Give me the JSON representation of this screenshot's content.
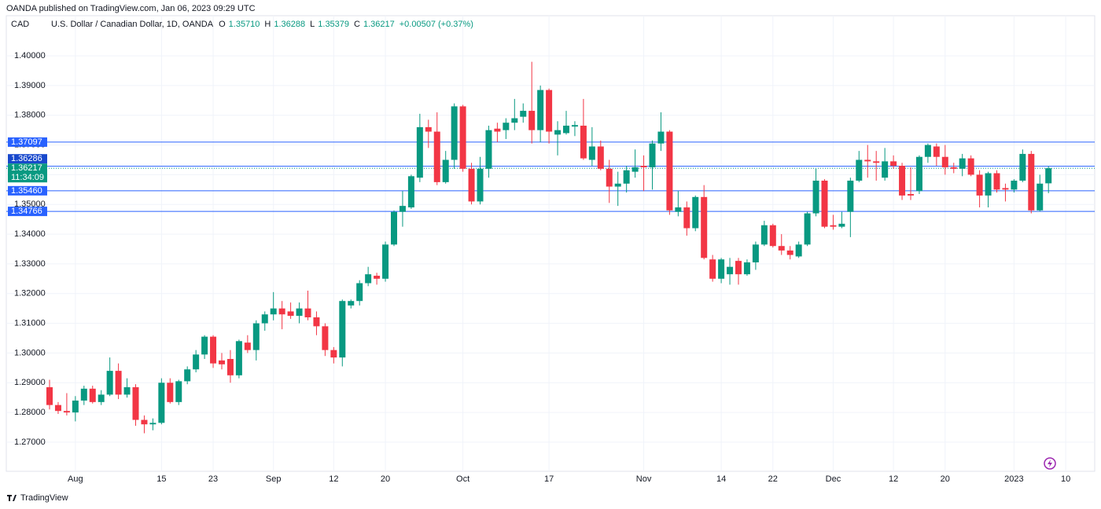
{
  "chart_data": {
    "type": "candlestick",
    "published": "OANDA published on TradingView.com, Jan 06, 2023 09:29 UTC",
    "currency": "CAD",
    "symbol": "U.S. Dollar / Canadian Dollar, 1D, OANDA",
    "ohlc_legend": [
      {
        "key": "O",
        "value": "1.35710"
      },
      {
        "key": "H",
        "value": "1.36288"
      },
      {
        "key": "L",
        "value": "1.35379"
      },
      {
        "key": "C",
        "value": "1.36217"
      }
    ],
    "change": "+0.00507 (+0.37%)",
    "footer": "TradingView",
    "up_color": "#089981",
    "down_color": "#f23645",
    "line_color": "#2962ff",
    "grid": true,
    "ylim": [
      1.2602,
      1.4135
    ],
    "yticks": [
      {
        "value": 1.27,
        "label": "1.27000"
      },
      {
        "value": 1.28,
        "label": "1.28000"
      },
      {
        "value": 1.29,
        "label": "1.29000"
      },
      {
        "value": 1.3,
        "label": "1.30000"
      },
      {
        "value": 1.31,
        "label": "1.31000"
      },
      {
        "value": 1.32,
        "label": "1.32000"
      },
      {
        "value": 1.33,
        "label": "1.33000"
      },
      {
        "value": 1.34,
        "label": "1.34000"
      },
      {
        "value": 1.35,
        "label": "1.35000"
      },
      {
        "value": 1.36,
        "label": "1.36000"
      },
      {
        "value": 1.37,
        "label": "1.37000"
      },
      {
        "value": 1.38,
        "label": "1.38000"
      },
      {
        "value": 1.39,
        "label": "1.39000"
      },
      {
        "value": 1.4,
        "label": "1.40000"
      }
    ],
    "price_lines": [
      1.37097,
      1.36286,
      {
        "value": 1.3546,
        "label": "1.35460"
      },
      1.34766
    ],
    "last_price": 1.36217,
    "countdown": "11:34:09",
    "categories": [
      null,
      null,
      null,
      "Aug",
      null,
      null,
      null,
      null,
      null,
      null,
      null,
      null,
      null,
      "15",
      null,
      null,
      null,
      null,
      null,
      "23",
      null,
      null,
      null,
      null,
      null,
      null,
      "Sep",
      null,
      null,
      null,
      null,
      null,
      null,
      "12",
      null,
      null,
      null,
      null,
      null,
      "20",
      null,
      null,
      null,
      null,
      null,
      null,
      null,
      null,
      "Oct",
      null,
      null,
      null,
      null,
      null,
      null,
      null,
      null,
      null,
      "17",
      null,
      null,
      null,
      null,
      null,
      null,
      null,
      null,
      null,
      null,
      "Nov",
      null,
      null,
      null,
      null,
      null,
      null,
      null,
      null,
      "14",
      null,
      null,
      null,
      null,
      null,
      "22",
      null,
      null,
      null,
      null,
      null,
      null,
      "Dec",
      null,
      null,
      null,
      null,
      null,
      null,
      "12",
      null,
      null,
      null,
      null,
      null,
      "20",
      null,
      null,
      null,
      null,
      null,
      null,
      null,
      "2023",
      null,
      null,
      null,
      null,
      null,
      "10"
    ],
    "open": [
      1.2885,
      1.2825,
      1.2805,
      1.28,
      1.284,
      1.288,
      1.2835,
      1.286,
      1.294,
      1.286,
      1.2885,
      1.2775,
      1.276,
      1.2765,
      1.29,
      1.2835,
      1.2905,
      1.2945,
      1.2995,
      1.3055,
      1.2975,
      1.298,
      1.2925,
      1.3035,
      1.301,
      1.31,
      1.313,
      1.315,
      1.314,
      1.3125,
      1.315,
      1.312,
      1.309,
      1.301,
      1.2985,
      1.316,
      1.3175,
      1.3235,
      1.326,
      1.325,
      1.3365,
      1.3475,
      1.349,
      1.359,
      1.376,
      1.3745,
      1.3575,
      1.365,
      1.383,
      1.362,
      1.351,
      1.362,
      1.3755,
      1.375,
      1.3775,
      1.3795,
      1.3815,
      1.375,
      1.3885,
      1.3735,
      1.374,
      1.3762,
      1.3765,
      1.365,
      1.3695,
      1.362,
      1.356,
      1.357,
      1.361,
      1.363,
      1.3625,
      1.3705,
      1.3745,
      1.3475,
      1.349,
      1.342,
      1.3525,
      1.3315,
      1.325,
      1.3265,
      1.331,
      1.3265,
      1.3305,
      1.3365,
      1.343,
      1.336,
      1.3345,
      1.3325,
      1.3365,
      1.347,
      1.358,
      1.343,
      1.3425,
      1.3475,
      1.358,
      1.365,
      1.3645,
      1.359,
      1.3645,
      1.363,
      1.3535,
      1.3545,
      1.366,
      1.3695,
      1.366,
      1.3625,
      1.362,
      1.3655,
      1.36,
      1.353,
      1.3605,
      1.3555,
      1.355,
      1.358,
      1.367,
      1.348,
      1.3571,
      null,
      null
    ],
    "high": [
      1.291,
      1.2835,
      1.2865,
      1.2855,
      1.289,
      1.289,
      1.2875,
      1.2985,
      1.2965,
      1.2915,
      1.2895,
      1.279,
      1.278,
      1.2915,
      1.2915,
      1.291,
      1.2955,
      1.301,
      1.306,
      1.306,
      1.3,
      1.301,
      1.3045,
      1.306,
      1.311,
      1.314,
      1.3205,
      1.3175,
      1.317,
      1.317,
      1.321,
      1.314,
      1.31,
      1.302,
      1.318,
      1.318,
      1.3245,
      1.329,
      1.327,
      1.3375,
      1.348,
      1.3545,
      1.36,
      1.3805,
      1.3785,
      1.381,
      1.368,
      1.384,
      1.3835,
      1.364,
      1.366,
      1.3765,
      1.3775,
      1.379,
      1.3855,
      1.384,
      1.398,
      1.39,
      1.389,
      1.378,
      1.3815,
      1.378,
      1.3855,
      1.376,
      1.3715,
      1.365,
      1.361,
      1.363,
      1.3685,
      1.3665,
      1.3715,
      1.381,
      1.375,
      1.3545,
      1.351,
      1.353,
      1.3565,
      1.333,
      1.332,
      1.332,
      1.332,
      1.3315,
      1.3375,
      1.3445,
      1.3435,
      1.34,
      1.336,
      1.3375,
      1.3475,
      1.362,
      1.3585,
      1.3465,
      1.3475,
      1.359,
      1.368,
      1.37,
      1.368,
      1.369,
      1.3665,
      1.364,
      1.3625,
      1.3665,
      1.3705,
      1.3705,
      1.37,
      1.364,
      1.367,
      1.3665,
      1.3615,
      1.361,
      1.3615,
      1.357,
      1.3585,
      1.3685,
      1.368,
      1.36,
      1.36288,
      null,
      null
    ],
    "low": [
      1.281,
      1.2795,
      1.279,
      1.277,
      1.2825,
      1.283,
      1.2825,
      1.2855,
      1.2845,
      1.285,
      1.2755,
      1.273,
      1.274,
      1.276,
      1.283,
      1.2825,
      1.2895,
      1.2935,
      1.298,
      1.295,
      1.2945,
      1.29,
      1.2915,
      1.3,
      1.2975,
      1.3075,
      1.311,
      1.308,
      1.3115,
      1.31,
      1.311,
      1.306,
      1.299,
      1.2965,
      1.2955,
      1.315,
      1.316,
      1.3225,
      1.323,
      1.324,
      1.336,
      1.3425,
      1.3485,
      1.3575,
      1.369,
      1.3565,
      1.357,
      1.362,
      1.361,
      1.35,
      1.35,
      1.359,
      1.371,
      1.372,
      1.375,
      1.3775,
      1.3705,
      1.371,
      1.3705,
      1.3665,
      1.3735,
      1.373,
      1.365,
      1.363,
      1.3615,
      1.3505,
      1.3495,
      1.354,
      1.359,
      1.3545,
      1.355,
      1.368,
      1.3465,
      1.346,
      1.3395,
      1.341,
      1.3315,
      1.324,
      1.3235,
      1.323,
      1.323,
      1.326,
      1.328,
      1.336,
      1.3355,
      1.333,
      1.3315,
      1.332,
      1.336,
      1.346,
      1.342,
      1.3415,
      1.342,
      1.339,
      1.3575,
      1.359,
      1.358,
      1.358,
      1.362,
      1.3515,
      1.3515,
      1.3535,
      1.364,
      1.363,
      1.36,
      1.3605,
      1.3595,
      1.3595,
      1.349,
      1.349,
      1.354,
      1.351,
      1.354,
      1.3575,
      1.347,
      1.3476,
      1.35379,
      null,
      null
    ],
    "close": [
      1.2825,
      1.2805,
      1.28,
      1.284,
      1.288,
      1.2835,
      1.286,
      1.294,
      1.286,
      1.2885,
      1.2775,
      1.276,
      1.2765,
      1.29,
      1.2835,
      1.2905,
      1.2945,
      1.2995,
      1.3055,
      1.2965,
      1.2962,
      1.2925,
      1.304,
      1.301,
      1.31,
      1.313,
      1.315,
      1.313,
      1.3125,
      1.315,
      1.312,
      1.309,
      1.301,
      1.2985,
      1.3175,
      1.3175,
      1.3235,
      1.3265,
      1.325,
      1.3365,
      1.3475,
      1.3495,
      1.3595,
      1.376,
      1.3745,
      1.3575,
      1.365,
      1.383,
      1.362,
      1.351,
      1.362,
      1.375,
      1.3745,
      1.3775,
      1.379,
      1.3815,
      1.375,
      1.3885,
      1.3745,
      1.375,
      1.3765,
      1.3767,
      1.3655,
      1.3695,
      1.362,
      1.356,
      1.357,
      1.3615,
      1.3625,
      1.3625,
      1.3705,
      1.3745,
      1.348,
      1.349,
      1.342,
      1.3525,
      1.332,
      1.325,
      1.3315,
      1.329,
      1.3265,
      1.3305,
      1.3365,
      1.343,
      1.336,
      1.3345,
      1.333,
      1.3365,
      1.347,
      1.358,
      1.3425,
      1.3425,
      1.3435,
      1.358,
      1.365,
      1.3645,
      1.364,
      1.3645,
      1.363,
      1.353,
      1.353,
      1.366,
      1.37,
      1.366,
      1.3625,
      1.362,
      1.3655,
      1.36,
      1.353,
      1.3605,
      1.355,
      1.355,
      1.358,
      1.367,
      1.348,
      1.357,
      1.36217,
      null,
      null
    ]
  }
}
